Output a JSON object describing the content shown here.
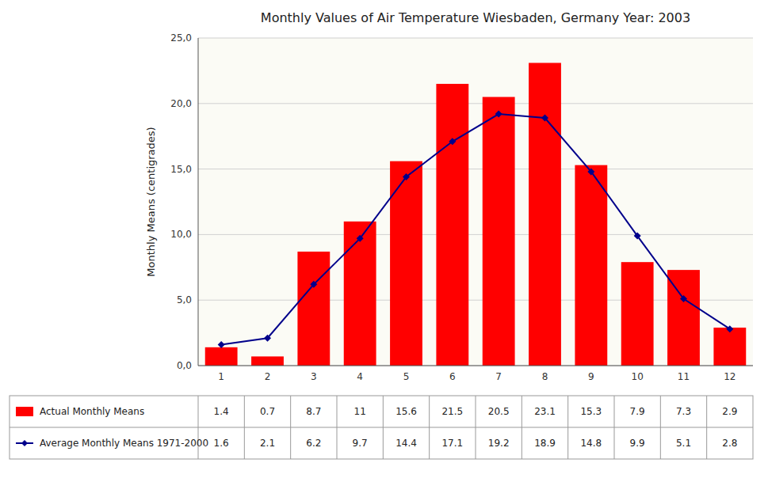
{
  "chart_data": {
    "type": "bar",
    "title": "Monthly Values of Air Temperature  Wiesbaden, Germany   Year: 2003",
    "y_label": "Monthly Means (centigrades)",
    "categories": [
      "1",
      "2",
      "3",
      "4",
      "5",
      "6",
      "7",
      "8",
      "9",
      "10",
      "11",
      "12"
    ],
    "series": [
      {
        "name": "Actual Monthly Means",
        "type": "bar",
        "color": "#FF0000",
        "values": [
          1.4,
          0.7,
          8.7,
          11,
          15.6,
          21.5,
          20.5,
          23.1,
          15.3,
          7.9,
          7.3,
          2.9
        ]
      },
      {
        "name": "Average Monthly Means 1971-2000",
        "type": "line",
        "color": "#00008B",
        "marker": "diamond",
        "values": [
          1.6,
          2.1,
          6.2,
          9.7,
          14.4,
          17.1,
          19.2,
          18.9,
          14.8,
          9.9,
          5.1,
          2.8
        ]
      }
    ],
    "ylim": [
      0,
      25
    ],
    "yticks": [
      {
        "value": 0,
        "label": "0,0"
      },
      {
        "value": 5,
        "label": "5,0"
      },
      {
        "value": 10,
        "label": "10,0"
      },
      {
        "value": 15,
        "label": "15,0"
      },
      {
        "value": 20,
        "label": "20,0"
      },
      {
        "value": 25,
        "label": "25,0"
      }
    ],
    "grid": true
  }
}
